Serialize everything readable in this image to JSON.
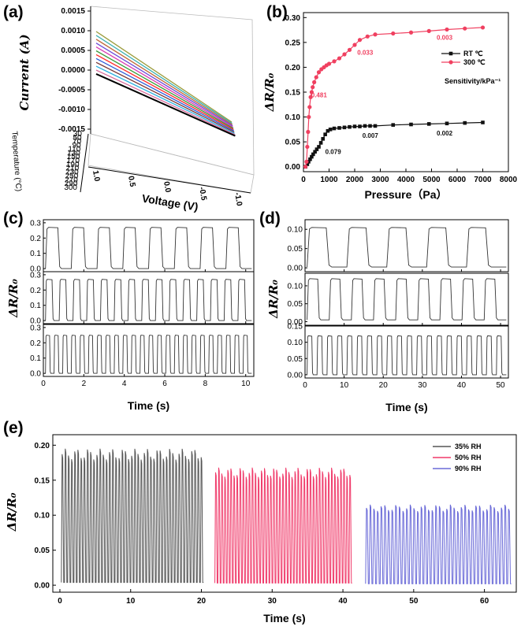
{
  "panel_labels": [
    "(a)",
    "(b)",
    "(c)",
    "(d)",
    "(e)"
  ],
  "chart_data": [
    {
      "id": "a",
      "type": "line",
      "projection": "3d",
      "xlabel": "Voltage (V)",
      "ylabel": "Current (A)",
      "zlabel": "Temperature (°C)",
      "x_ticks": [
        "1.0",
        "0.5",
        "0.0",
        "-0.5",
        "-1.0"
      ],
      "y_ticks": [
        "0.0015",
        "0.0010",
        "0.0005",
        "0.0000",
        "-0.0005",
        "-0.0010",
        "-0.0015"
      ],
      "z_ticks": [
        "30",
        "50",
        "70",
        "90",
        "110",
        "130",
        "150",
        "170",
        "190",
        "210",
        "230",
        "250",
        "270",
        "290",
        "300"
      ],
      "series_colors": [
        "#9c9c3c",
        "#3ab0b0",
        "#c06a3a",
        "#6a4ad8",
        "#d83ab0",
        "#3a9a3a",
        "#ff2a2a",
        "#2a5ad8",
        "#7a3a3a",
        "#2ab0e0",
        "#d86a9a",
        "#000000"
      ],
      "xlim": [
        1.0,
        -1.0
      ],
      "ylim": [
        -0.0015,
        0.0015
      ],
      "lines_from": [
        0.00095,
        0.0
      ]
    },
    {
      "id": "b",
      "type": "line",
      "xlabel": "Pressure（Pa）",
      "ylabel": "ΔR/R₀",
      "xlim": [
        0,
        8000
      ],
      "ylim": [
        -0.01,
        0.31
      ],
      "x_ticks": [
        "0",
        "1000",
        "2000",
        "3000",
        "4000",
        "5000",
        "6000",
        "7000",
        "8000"
      ],
      "y_ticks": [
        "0.00",
        "0.05",
        "0.10",
        "0.15",
        "0.20",
        "0.25",
        "0.30"
      ],
      "legend_position": "right",
      "legend_note": "Sensitivity/kPa⁻¹",
      "series": [
        {
          "name": "RT ℃",
          "color": "#111111",
          "x": [
            80,
            150,
            200,
            260,
            320,
            380,
            450,
            520,
            600,
            680,
            760,
            850,
            950,
            1050,
            1200,
            1400,
            1600,
            1800,
            2000,
            2200,
            2400,
            2600,
            2800,
            3500,
            4200,
            4900,
            5600,
            6300,
            7000
          ],
          "y": [
            0.0,
            0.005,
            0.01,
            0.015,
            0.02,
            0.025,
            0.03,
            0.035,
            0.04,
            0.048,
            0.056,
            0.065,
            0.072,
            0.075,
            0.077,
            0.078,
            0.079,
            0.08,
            0.081,
            0.081,
            0.082,
            0.082,
            0.082,
            0.084,
            0.085,
            0.086,
            0.087,
            0.088,
            0.089
          ]
        },
        {
          "name": "300 ℃",
          "color": "#f04060",
          "x": [
            80,
            120,
            150,
            180,
            210,
            240,
            280,
            320,
            360,
            420,
            500,
            600,
            700,
            800,
            900,
            1000,
            1200,
            1400,
            1600,
            1800,
            2000,
            2200,
            2500,
            2800,
            3500,
            4200,
            4900,
            5600,
            6300,
            7000
          ],
          "y": [
            0.0,
            0.01,
            0.04,
            0.07,
            0.1,
            0.12,
            0.14,
            0.15,
            0.16,
            0.17,
            0.18,
            0.19,
            0.196,
            0.2,
            0.204,
            0.207,
            0.212,
            0.218,
            0.226,
            0.235,
            0.245,
            0.255,
            0.262,
            0.266,
            0.268,
            0.27,
            0.273,
            0.276,
            0.278,
            0.28
          ]
        }
      ],
      "annotations": [
        {
          "text": "0.481",
          "color": "#f04060",
          "x": 300,
          "y": 0.14
        },
        {
          "text": "0.033",
          "color": "#f04060",
          "x": 2100,
          "y": 0.225
        },
        {
          "text": "0.003",
          "color": "#f04060",
          "x": 5200,
          "y": 0.255
        },
        {
          "text": "0.079",
          "color": "#111111",
          "x": 850,
          "y": 0.026
        },
        {
          "text": "0.007",
          "color": "#111111",
          "x": 2300,
          "y": 0.058
        },
        {
          "text": "0.002",
          "color": "#111111",
          "x": 5200,
          "y": 0.063
        }
      ]
    },
    {
      "id": "c",
      "type": "line",
      "xlabel": "Time (s)",
      "ylabel": "ΔR/R₀",
      "xlim": [
        0,
        10.4
      ],
      "x_ticks": [
        "0",
        "2",
        "4",
        "6",
        "8",
        "10"
      ],
      "y_ticks": [
        "0.0",
        "0.1",
        "0.2",
        "0.3"
      ],
      "waveform": "square",
      "subplots": [
        {
          "cycles": 8,
          "high": 0.27,
          "low": 0.0,
          "ylim": [
            -0.02,
            0.32
          ]
        },
        {
          "cycles": 15,
          "high": 0.27,
          "low": 0.0,
          "ylim": [
            -0.02,
            0.32
          ]
        },
        {
          "cycles": 24,
          "high": 0.25,
          "low": 0.0,
          "ylim": [
            -0.02,
            0.32
          ]
        }
      ]
    },
    {
      "id": "d",
      "type": "line",
      "xlabel": "Time (s)",
      "ylabel": "ΔR/R₀",
      "xlim": [
        0,
        52
      ],
      "x_ticks": [
        "0",
        "10",
        "20",
        "30",
        "40",
        "50"
      ],
      "y_ticks": [
        "0.00",
        "0.05",
        "0.10"
      ],
      "waveform": "square",
      "subplots": [
        {
          "cycles": 5,
          "high": 0.105,
          "low": 0.002,
          "ylim": [
            -0.01,
            0.125
          ],
          "y_ticks": [
            "0.00",
            "0.05",
            "0.10"
          ]
        },
        {
          "cycles": 9,
          "high": 0.12,
          "low": 0.005,
          "ylim": [
            -0.01,
            0.135
          ],
          "y_ticks": [
            "0.00",
            "0.05",
            "0.10"
          ]
        },
        {
          "cycles": 20,
          "high": 0.12,
          "low": 0.0,
          "ylim": [
            -0.01,
            0.15
          ],
          "y_ticks": [
            "0.00",
            "0.05",
            "0.10",
            "0.15"
          ]
        }
      ]
    },
    {
      "id": "e",
      "type": "line",
      "xlabel": "Time (s)",
      "ylabel": "ΔR/R₀",
      "xlim": [
        -1,
        64.5
      ],
      "ylim": [
        -0.01,
        0.215
      ],
      "x_ticks": [
        "0",
        "10",
        "20",
        "30",
        "40",
        "50",
        "60"
      ],
      "y_ticks": [
        "0.00",
        "0.05",
        "0.10",
        "0.15",
        "0.20"
      ],
      "legend_position": "top-right",
      "series": [
        {
          "name": "35% RH",
          "color": "#555555",
          "t_start": 0.2,
          "t_end": 20.3,
          "cycles": 45,
          "high": 0.195,
          "low": 0.004
        },
        {
          "name": "50% RH",
          "color": "#f03a6a",
          "t_start": 21.9,
          "t_end": 41.3,
          "cycles": 45,
          "high": 0.168,
          "low": 0.003
        },
        {
          "name": "90% RH",
          "color": "#6a6ad8",
          "t_start": 43.2,
          "t_end": 63.8,
          "cycles": 40,
          "high": 0.115,
          "low": 0.002
        }
      ]
    }
  ]
}
